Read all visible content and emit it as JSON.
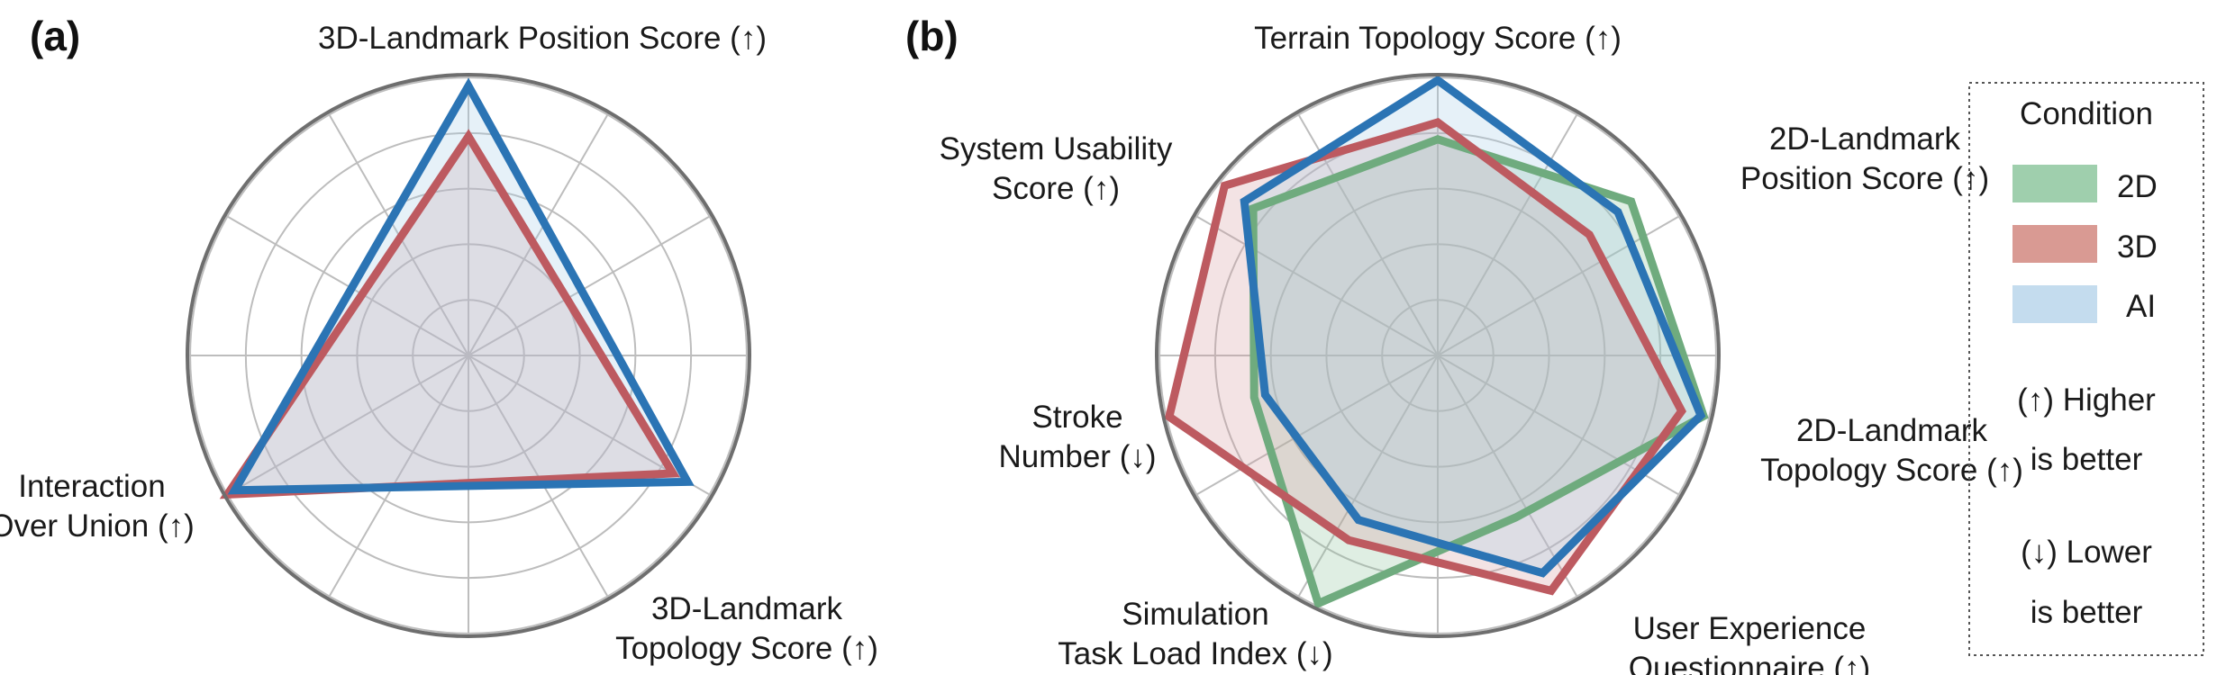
{
  "chart_data": [
    {
      "panel": "(a)",
      "type": "radar",
      "axes": [
        [
          "3D-Landmark Position Score (↑)"
        ],
        [
          "3D-Landmark",
          "Topology Score (↑)"
        ],
        [
          "Interaction",
          "Over Union (↑)"
        ]
      ],
      "range": [
        0,
        1
      ],
      "rings": 5,
      "grid": true,
      "series": [
        {
          "name": "3D",
          "values": [
            0.78,
            0.84,
            0.99
          ]
        },
        {
          "name": "AI",
          "values": [
            0.96,
            0.9,
            0.96
          ]
        }
      ]
    },
    {
      "panel": "(b)",
      "type": "radar",
      "axes": [
        [
          "Terrain Topology Score (↑)"
        ],
        [
          "2D-Landmark",
          "Position Score (↑)"
        ],
        [
          "2D-Landmark",
          "Topology Score (↑)"
        ],
        [
          "User Experience",
          "Questionnaire (↑)"
        ],
        [
          "Simulation",
          "Task Load Index (↓)"
        ],
        [
          "Stroke",
          "Number (↓)"
        ],
        [
          "System Usability",
          "Score (↑)"
        ]
      ],
      "range": [
        0,
        1
      ],
      "rings": 5,
      "grid": true,
      "series": [
        {
          "name": "2D",
          "values": [
            0.77,
            0.88,
            0.97,
            0.64,
            0.98,
            0.67,
            0.84
          ]
        },
        {
          "name": "3D",
          "values": [
            0.83,
            0.69,
            0.89,
            0.93,
            0.73,
            0.98,
            0.97
          ]
        },
        {
          "name": "AI",
          "values": [
            0.98,
            0.82,
            0.96,
            0.86,
            0.65,
            0.63,
            0.88
          ]
        }
      ]
    }
  ],
  "colors": {
    "2D": {
      "line": "#6fab7e",
      "fill": "#8cc39b",
      "legend": "#9fcfad"
    },
    "3D": {
      "line": "#bd5a60",
      "fill": "#d49a9e",
      "legend": "#d99a93"
    },
    "AI": {
      "line": "#2b74b4",
      "fill": "#a7cbe5",
      "legend": "#c4dcee"
    },
    "grid": "#bdbdbd",
    "outer_ring": "#6e6e6e"
  },
  "legend": {
    "title": "Condition",
    "items": [
      "2D",
      "3D",
      "AI"
    ],
    "note_higher": [
      "(↑) Higher",
      "is better"
    ],
    "note_lower": [
      "(↓) Lower",
      "is better"
    ]
  }
}
